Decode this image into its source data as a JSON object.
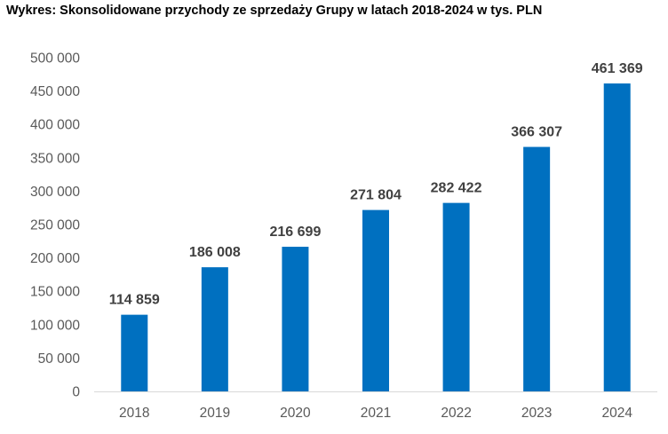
{
  "chart_data": {
    "type": "bar",
    "title": "Wykres: Skonsolidowane przychody ze sprzedaży Grupy w latach 2018-2024 w tys. PLN",
    "xlabel": "",
    "ylabel": "",
    "categories": [
      "2018",
      "2019",
      "2020",
      "2021",
      "2022",
      "2023",
      "2024"
    ],
    "values": [
      114859,
      186008,
      216699,
      271804,
      282422,
      366307,
      461369
    ],
    "data_labels": [
      "114 859",
      "186 008",
      "216 699",
      "271 804",
      "282 422",
      "366 307",
      "461 369"
    ],
    "ylim": [
      0,
      500000
    ],
    "yticks": [
      0,
      50000,
      100000,
      150000,
      200000,
      250000,
      300000,
      350000,
      400000,
      450000,
      500000
    ],
    "ytick_labels": [
      "0",
      "50 000",
      "100 000",
      "150 000",
      "200 000",
      "250 000",
      "300 000",
      "350 000",
      "400 000",
      "450 000",
      "500 000"
    ],
    "grid": false,
    "legend": "none",
    "bar_color": "#0070C0",
    "axis_color": "#D9D9D9"
  }
}
